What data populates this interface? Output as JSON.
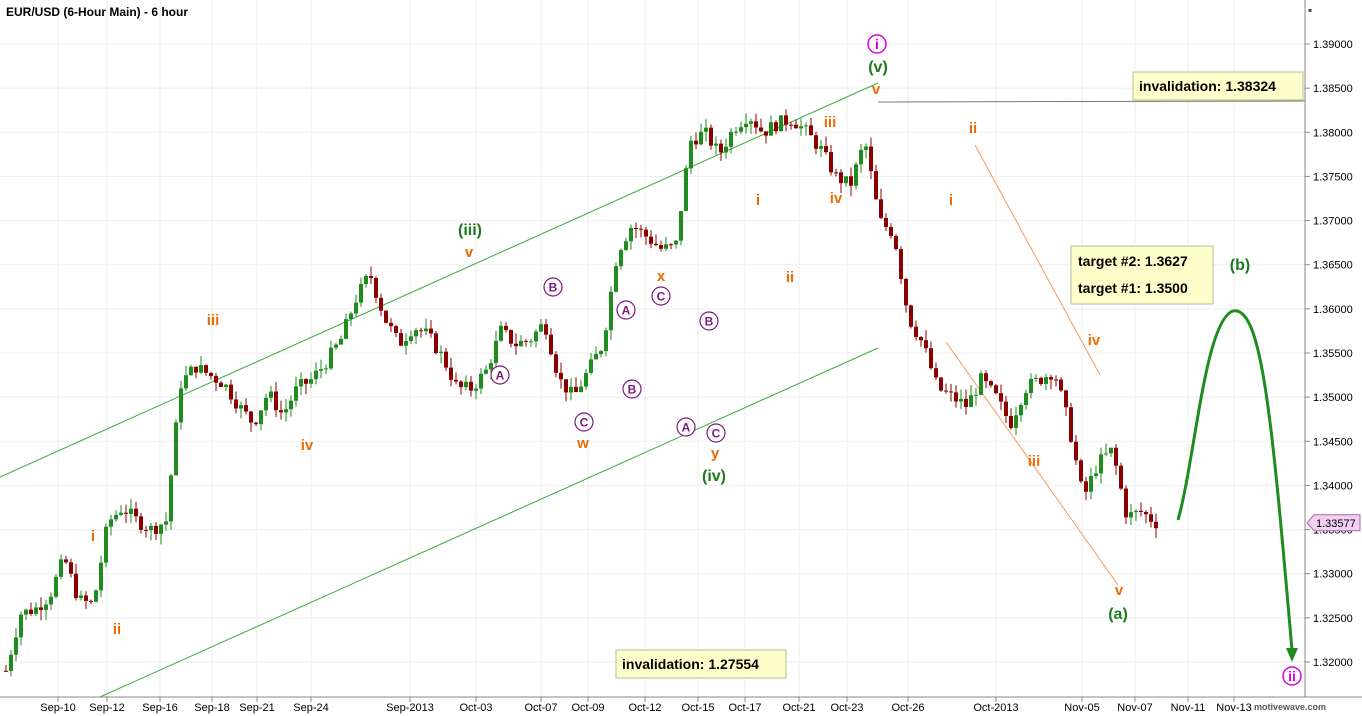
{
  "title": "EUR/USD (6-Hour Main) - 6 hour",
  "watermark": "motivewave.com",
  "colors": {
    "up": "#1e8c1e",
    "down": "#8b0000",
    "orange": "#ee6a00",
    "green": "#1e7a1e",
    "purple": "#7a1a7a",
    "magenta": "#dd00dd",
    "boxfill": "#ffffcc",
    "channel": "#3aaa3a",
    "orangeLine": "#f59a5a"
  },
  "chart_data": {
    "type": "candlestick",
    "symbol": "EUR/USD",
    "timeframe": "6 hour",
    "ylim": [
      1.3165,
      1.3945
    ],
    "yticks": [
      "1.39000",
      "1.38500",
      "1.38000",
      "1.37500",
      "1.37000",
      "1.36500",
      "1.36000",
      "1.35500",
      "1.35000",
      "1.34500",
      "1.34000",
      "1.33500",
      "1.33000",
      "1.32500",
      "1.32000"
    ],
    "xticks": [
      "Sep-10",
      "Sep-12",
      "Sep-16",
      "Sep-18",
      "Sep-21",
      "Sep-24",
      "Sep-2013",
      "Oct-03",
      "Oct-07",
      "Oct-09",
      "Oct-12",
      "Oct-15",
      "Oct-17",
      "Oct-21",
      "Oct-23",
      "Oct-26",
      "Oct-2013",
      "Nov-05",
      "Nov-07",
      "Nov-11",
      "Nov-13"
    ],
    "last_price": "1.33577",
    "anchors": [
      1.319,
      1.3255,
      1.326,
      1.3275,
      1.3318,
      1.327,
      1.3265,
      1.3358,
      1.3375,
      1.336,
      1.335,
      1.336,
      1.3515,
      1.3535,
      1.3525,
      1.3515,
      1.349,
      1.347,
      1.3505,
      1.348,
      1.351,
      1.352,
      1.354,
      1.3565,
      1.361,
      1.364,
      1.359,
      1.356,
      1.358,
      1.357,
      1.3545,
      1.351,
      1.351,
      1.353,
      1.3575,
      1.356,
      1.3565,
      1.3585,
      1.352,
      1.35,
      1.353,
      1.356,
      1.3665,
      1.3695,
      1.3682,
      1.3668,
      1.367,
      1.379,
      1.38,
      1.3775,
      1.3805,
      1.382,
      1.38,
      1.381,
      1.3815,
      1.38,
      1.378,
      1.375,
      1.374,
      1.379,
      1.37,
      1.3685,
      1.359,
      1.356,
      1.351,
      1.35,
      1.349,
      1.352,
      1.35,
      1.347,
      1.351,
      1.352,
      1.353,
      1.347,
      1.3385,
      1.3425,
      1.344,
      1.3365,
      1.337,
      1.3358
    ],
    "invalidation_upper": 1.38324,
    "invalidation_lower": 1.27554,
    "targets": [
      {
        "label": "target #2",
        "value": "1.3627"
      },
      {
        "label": "target #1",
        "value": "1.3500"
      }
    ],
    "annotations": [
      {
        "text": "iii",
        "color": "orange",
        "at": "Sep-17"
      },
      {
        "text": "iv",
        "color": "orange",
        "at": "Sep-24"
      },
      {
        "text": "(iii)",
        "color": "green",
        "at": "Oct-02"
      },
      {
        "text": "v",
        "color": "orange",
        "at": "Oct-02"
      },
      {
        "text": "w",
        "color": "orange",
        "at": "Oct-08"
      },
      {
        "text": "x",
        "color": "orange",
        "at": "Oct-12"
      },
      {
        "text": "y",
        "color": "orange",
        "at": "Oct-15"
      },
      {
        "text": "(iv)",
        "color": "green",
        "at": "Oct-15"
      },
      {
        "text": "i",
        "color": "orange",
        "at": "Oct-17"
      },
      {
        "text": "ii",
        "color": "orange",
        "at": "Oct-19"
      },
      {
        "text": "iii",
        "color": "orange",
        "at": "Oct-22"
      },
      {
        "text": "iv",
        "color": "orange",
        "at": "Oct-22"
      },
      {
        "text": "v",
        "color": "orange",
        "at": "Oct-24"
      },
      {
        "text": "(v)",
        "color": "green",
        "at": "Oct-24"
      },
      {
        "text": "i",
        "color": "magenta",
        "at": "Oct-24"
      },
      {
        "text": "i",
        "color": "orange",
        "at": "Oct-28"
      },
      {
        "text": "ii",
        "color": "orange",
        "at": "Oct-29"
      },
      {
        "text": "iii",
        "color": "orange",
        "at": "Nov-01"
      },
      {
        "text": "iv",
        "color": "orange",
        "at": "Nov-05"
      },
      {
        "text": "v",
        "color": "orange",
        "at": "Nov-06"
      },
      {
        "text": "(a)",
        "color": "green",
        "at": "Nov-06"
      },
      {
        "text": "(b)",
        "color": "green",
        "at": "Nov-11"
      },
      {
        "text": "ii",
        "color": "magenta",
        "at": "Nov-13"
      },
      {
        "text": "i",
        "color": "orange",
        "at": "Sep-11"
      },
      {
        "text": "ii",
        "color": "orange",
        "at": "Sep-12"
      }
    ],
    "circled": [
      {
        "text": "A",
        "at": "Oct-06"
      },
      {
        "text": "B",
        "at": "Oct-07"
      },
      {
        "text": "C",
        "at": "Oct-08"
      },
      {
        "text": "A",
        "at": "Oct-10"
      },
      {
        "text": "B",
        "at": "Oct-11"
      },
      {
        "text": "C",
        "at": "Oct-12"
      },
      {
        "text": "A",
        "at": "Oct-14"
      },
      {
        "text": "B",
        "at": "Oct-15"
      },
      {
        "text": "C",
        "at": "Oct-15"
      }
    ]
  }
}
